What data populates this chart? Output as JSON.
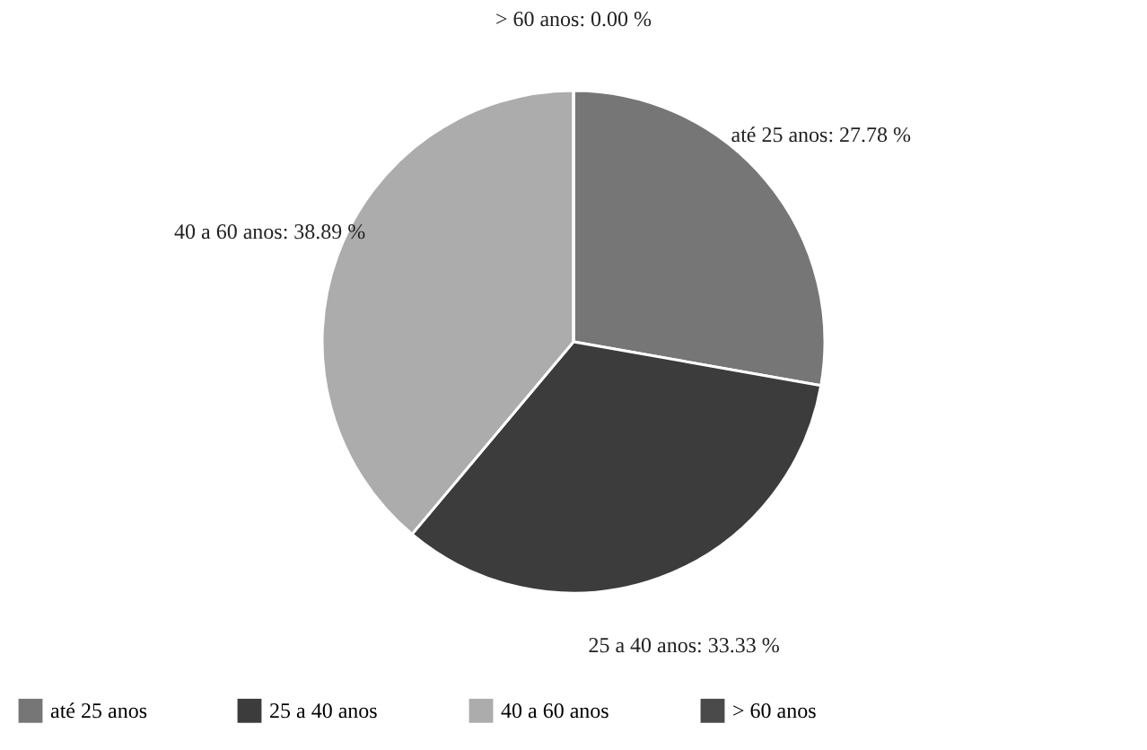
{
  "chart_data": {
    "type": "pie",
    "categories": [
      "até 25 anos",
      "25 a 40 anos",
      "40 a 60 anos",
      "> 60 anos"
    ],
    "values": [
      27.78,
      33.33,
      38.89,
      0.0
    ],
    "colors": [
      "#767676",
      "#3c3c3c",
      "#acacac",
      "#4a4a4a"
    ],
    "value_labels": [
      "até 25 anos: 27.78 %",
      "25 a 40 anos: 33.33 %",
      "40 a 60 anos: 38.89 %",
      "> 60 anos: 0.00 %"
    ],
    "legend": "bottom"
  }
}
